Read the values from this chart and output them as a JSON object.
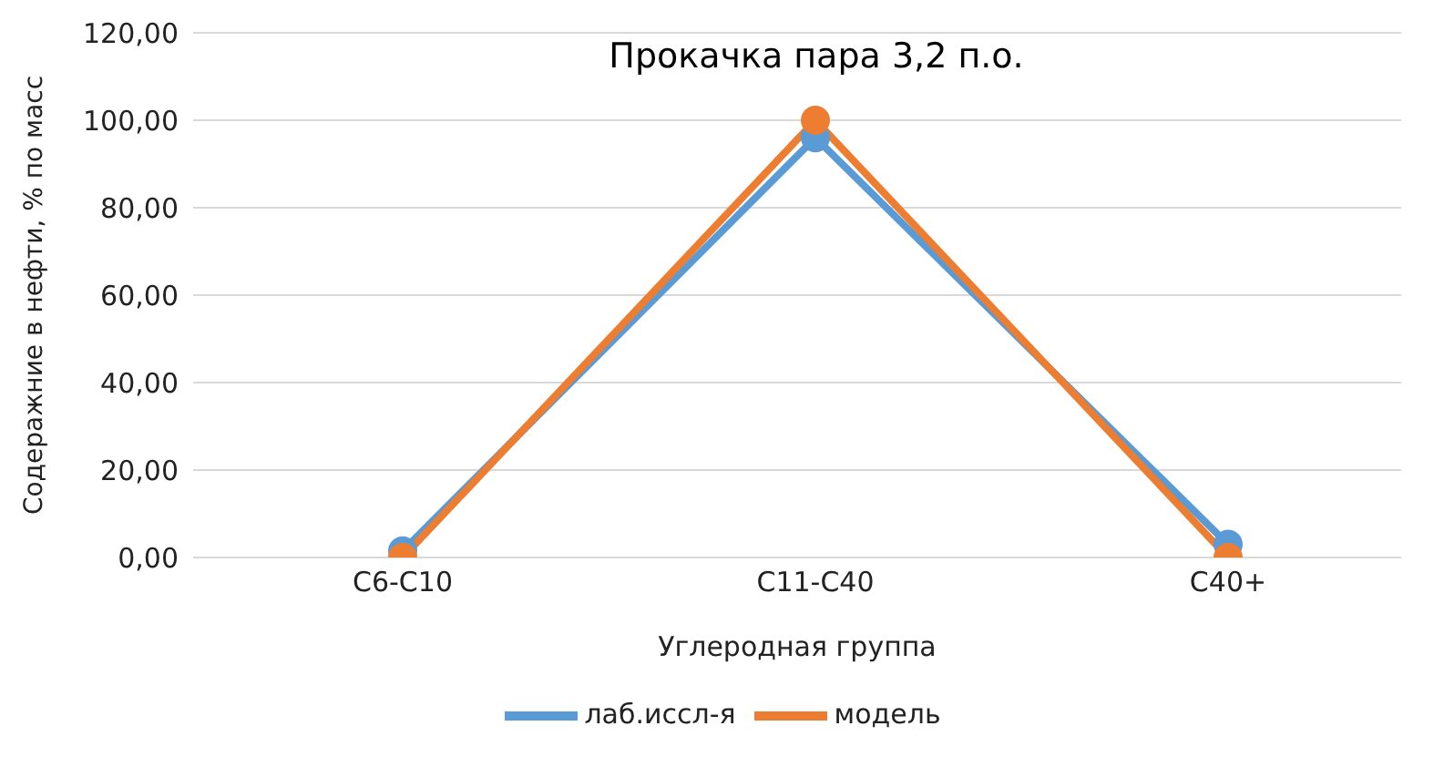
{
  "chart_data": {
    "type": "line",
    "title": "Прокачка пара 3,2 п.о.",
    "xlabel": "Углеродная группа",
    "ylabel": "Содеражние в нефти, % по масс",
    "categories": [
      "C6-C10",
      "C11-C40",
      "C40+"
    ],
    "series": [
      {
        "name": "лаб.иссл-я",
        "color": "#5b9bd5",
        "values": [
          1.5,
          96,
          3
        ]
      },
      {
        "name": "модель",
        "color": "#ed7d31",
        "values": [
          0,
          100,
          0
        ]
      }
    ],
    "ylim": [
      0,
      120
    ],
    "yticks": [
      {
        "value": 0,
        "label": "0,00"
      },
      {
        "value": 20,
        "label": "20,00"
      },
      {
        "value": 40,
        "label": "40,00"
      },
      {
        "value": 60,
        "label": "60,00"
      },
      {
        "value": 80,
        "label": "80,00"
      },
      {
        "value": 100,
        "label": "100,00"
      },
      {
        "value": 120,
        "label": "120,00"
      }
    ],
    "grid": "y",
    "legend": "bottom",
    "marker": "circle",
    "line_style": "solid"
  }
}
